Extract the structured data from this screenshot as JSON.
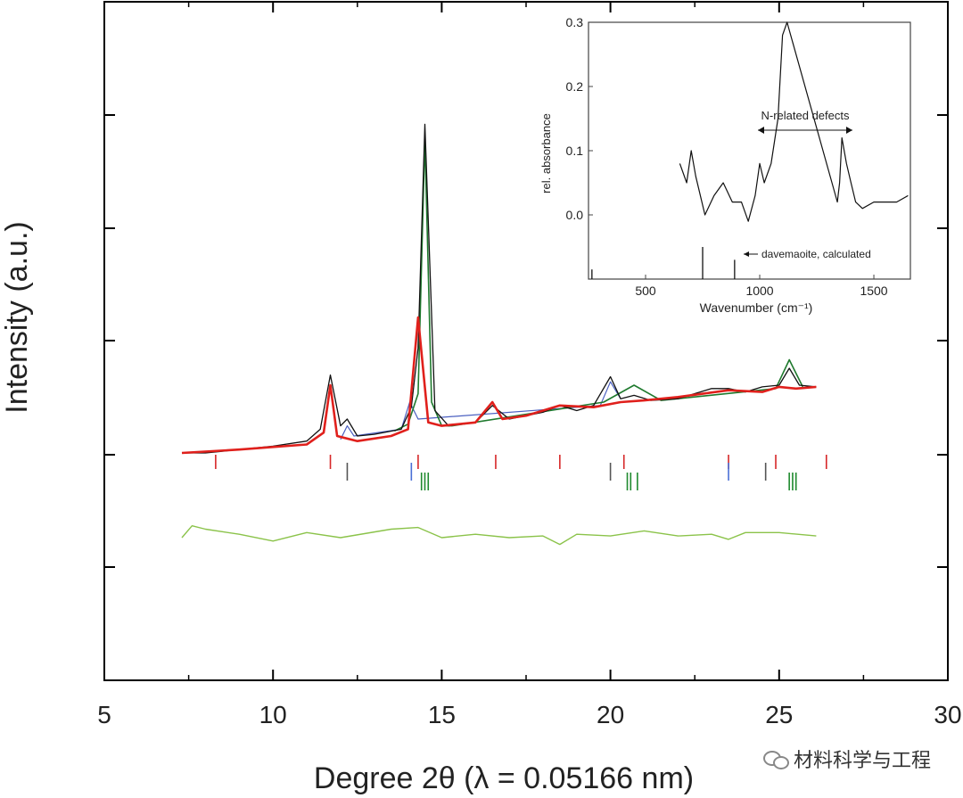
{
  "chart_data": [
    {
      "type": "line",
      "title": "",
      "xlabel": "Degree 2θ (λ = 0.05166 nm)",
      "ylabel": "Intensity (a.u.)",
      "xlim": [
        5,
        30
      ],
      "x_ticks": [
        5,
        10,
        15,
        20,
        25,
        30
      ],
      "y_ticks_labeled": false,
      "grid": false,
      "series": [
        {
          "style": "observed pattern, black",
          "x": [
            7.3,
            8.0,
            9.0,
            10.0,
            11.0,
            11.4,
            11.7,
            12.0,
            12.2,
            12.5,
            13.0,
            13.8,
            14.1,
            14.3,
            14.5,
            14.8,
            15.2,
            16.0,
            16.5,
            17.0,
            18.0,
            18.5,
            19.0,
            19.5,
            20.0,
            20.3,
            20.7,
            21.2,
            22.0,
            23.0,
            23.5,
            24.0,
            24.5,
            25.0,
            25.3,
            25.6,
            26.1
          ],
          "y": [
            0.0,
            0.0,
            0.02,
            0.04,
            0.07,
            0.14,
            0.46,
            0.16,
            0.2,
            0.1,
            0.11,
            0.14,
            0.27,
            0.62,
            1.94,
            0.25,
            0.16,
            0.18,
            0.28,
            0.2,
            0.24,
            0.28,
            0.25,
            0.28,
            0.45,
            0.32,
            0.34,
            0.31,
            0.32,
            0.38,
            0.38,
            0.36,
            0.39,
            0.4,
            0.5,
            0.4,
            0.39
          ]
        },
        {
          "style": "component fit, red",
          "x": [
            7.3,
            9.0,
            11.0,
            11.5,
            11.7,
            11.9,
            12.5,
            13.5,
            14.0,
            14.3,
            14.6,
            15.0,
            16.0,
            16.5,
            16.8,
            17.5,
            18.5,
            19.5,
            20.3,
            21.0,
            22.0,
            23.5,
            24.5,
            25.0,
            25.5,
            26.1
          ],
          "y": [
            0.0,
            0.02,
            0.05,
            0.12,
            0.4,
            0.1,
            0.07,
            0.1,
            0.14,
            0.8,
            0.18,
            0.16,
            0.18,
            0.3,
            0.2,
            0.22,
            0.28,
            0.27,
            0.3,
            0.31,
            0.33,
            0.37,
            0.36,
            0.39,
            0.38,
            0.39
          ]
        },
        {
          "style": "component fit, green",
          "x": [
            13.6,
            14.0,
            14.3,
            14.5,
            14.7,
            15.0,
            15.3,
            19.8,
            20.7,
            21.5,
            24.9,
            25.3,
            25.7
          ],
          "y": [
            0.13,
            0.17,
            0.35,
            1.86,
            0.3,
            0.16,
            0.16,
            0.3,
            0.4,
            0.31,
            0.38,
            0.55,
            0.39
          ]
        },
        {
          "style": "component fit, blue",
          "x": [
            12.0,
            12.2,
            12.4,
            13.8,
            14.05,
            14.3,
            19.7,
            20.0,
            20.3
          ],
          "y": [
            0.08,
            0.16,
            0.1,
            0.14,
            0.3,
            0.2,
            0.28,
            0.42,
            0.32
          ]
        },
        {
          "style": "difference curve, light green",
          "x": [
            7.3,
            7.6,
            8.0,
            9.0,
            10.0,
            11.0,
            12.0,
            13.5,
            14.3,
            15.0,
            16.0,
            17.0,
            18.0,
            18.5,
            19.0,
            20.0,
            21.0,
            22.0,
            23.0,
            23.5,
            24.0,
            25.0,
            26.1
          ],
          "y": [
            -0.5,
            -0.43,
            -0.45,
            -0.48,
            -0.52,
            -0.47,
            -0.5,
            -0.45,
            -0.44,
            -0.5,
            -0.48,
            -0.5,
            -0.49,
            -0.54,
            -0.48,
            -0.49,
            -0.46,
            -0.49,
            -0.48,
            -0.51,
            -0.47,
            -0.47,
            -0.49
          ]
        }
      ],
      "reflection_ticks": [
        {
          "color": "#d62728",
          "x": [
            8.3,
            11.7,
            14.3,
            16.6,
            18.5,
            20.4,
            23.5,
            24.9,
            26.4
          ]
        },
        {
          "color": "#555555",
          "x": [
            12.2,
            20.0,
            24.6
          ]
        },
        {
          "color": "#4a6fd6",
          "x": [
            14.1,
            23.5
          ]
        },
        {
          "color": "#1f8a2e",
          "x": [
            14.4,
            14.5,
            14.6,
            20.5,
            20.6,
            20.8,
            25.3,
            25.4,
            25.5
          ]
        }
      ]
    },
    {
      "type": "line",
      "title": "",
      "xlabel": "Wavenumber (cm⁻¹)",
      "ylabel": "rel. absorbance",
      "xlim": [
        250,
        1660
      ],
      "ylim": [
        -0.1,
        0.3
      ],
      "x_ticks": [
        500,
        1000,
        1500
      ],
      "y_ticks": [
        0.0,
        0.1,
        0.2,
        0.3
      ],
      "annotations": [
        "N-related defects",
        "davemaoite, calculated"
      ],
      "series": [
        {
          "style": "measured spectrum, black",
          "x": [
            650,
            680,
            700,
            720,
            760,
            800,
            840,
            880,
            920,
            950,
            980,
            1000,
            1020,
            1050,
            1080,
            1100,
            1120,
            1340,
            1350,
            1360,
            1380,
            1400,
            1420,
            1450,
            1500,
            1550,
            1600,
            1650
          ],
          "y": [
            0.08,
            0.05,
            0.1,
            0.06,
            0.0,
            0.03,
            0.05,
            0.02,
            0.02,
            -0.01,
            0.03,
            0.08,
            0.05,
            0.08,
            0.15,
            0.28,
            0.3,
            0.02,
            0.05,
            0.12,
            0.08,
            0.05,
            0.02,
            0.01,
            0.02,
            0.02,
            0.02,
            0.03
          ]
        }
      ],
      "calculated_bars": [
        {
          "x": 265,
          "y": -0.085
        },
        {
          "x": 750,
          "y": -0.05
        },
        {
          "x": 890,
          "y": -0.07
        }
      ]
    }
  ],
  "watermark": {
    "icon": "wechat-icon",
    "text": "材料科学与工程"
  },
  "colors": {
    "observed": "#111111",
    "red_fit": "#e0201c",
    "green_fit": "#1f7a2e",
    "blue_fit": "#4a5fc0",
    "difference": "#8bc34a",
    "axis": "#000000"
  }
}
